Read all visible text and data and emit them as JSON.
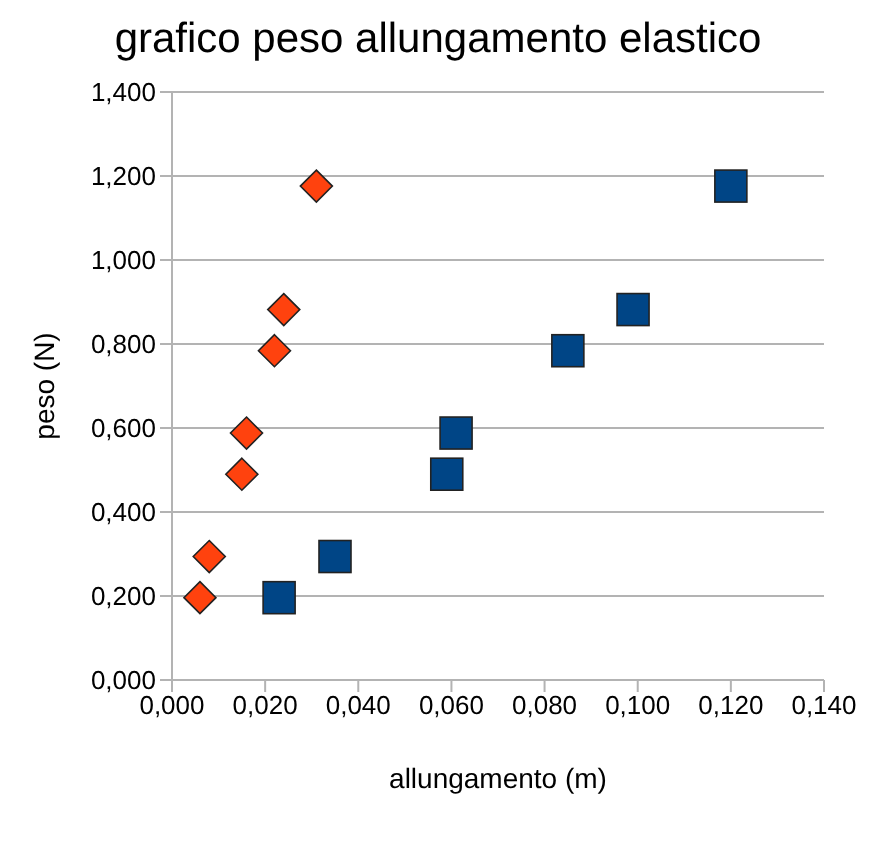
{
  "chart_data": {
    "type": "scatter",
    "title": "grafico peso allungamento elastico",
    "xlabel": "allungamento (m)",
    "ylabel": "peso (N)",
    "grid": "y",
    "legend": false,
    "xlim": [
      0,
      0.14
    ],
    "xticks": [
      {
        "value": 0,
        "label": "0,000"
      },
      {
        "value": 0.02,
        "label": "0,020"
      },
      {
        "value": 0.04,
        "label": "0,040"
      },
      {
        "value": 0.06,
        "label": "0,060"
      },
      {
        "value": 0.08,
        "label": "0,080"
      },
      {
        "value": 0.1,
        "label": "0,100"
      },
      {
        "value": 0.12,
        "label": "0,120"
      },
      {
        "value": 0.14,
        "label": "0,140"
      }
    ],
    "ylim": [
      0,
      1.4
    ],
    "yticks": [
      {
        "value": 0,
        "label": "0,000"
      },
      {
        "value": 0.2,
        "label": "0,200"
      },
      {
        "value": 0.4,
        "label": "0,400"
      },
      {
        "value": 0.6,
        "label": "0,600"
      },
      {
        "value": 0.8,
        "label": "0,800"
      },
      {
        "value": 1,
        "label": "1,000"
      },
      {
        "value": 1.2,
        "label": "1,200"
      },
      {
        "value": 1.4,
        "label": "1,400"
      }
    ],
    "series": [
      {
        "color": "#004586",
        "marker": "square",
        "x": [
          0.023,
          0.035,
          0.059,
          0.061,
          0.085,
          0.099,
          0.12
        ],
        "values": [
          0.196,
          0.294,
          0.49,
          0.588,
          0.784,
          0.882,
          1.176
        ]
      },
      {
        "color": "#ff420e",
        "marker": "diamond",
        "x": [
          0.006,
          0.008,
          0.015,
          0.016,
          0.022,
          0.024,
          0.031
        ],
        "values": [
          0.196,
          0.294,
          0.49,
          0.588,
          0.784,
          0.882,
          1.176
        ]
      }
    ]
  }
}
